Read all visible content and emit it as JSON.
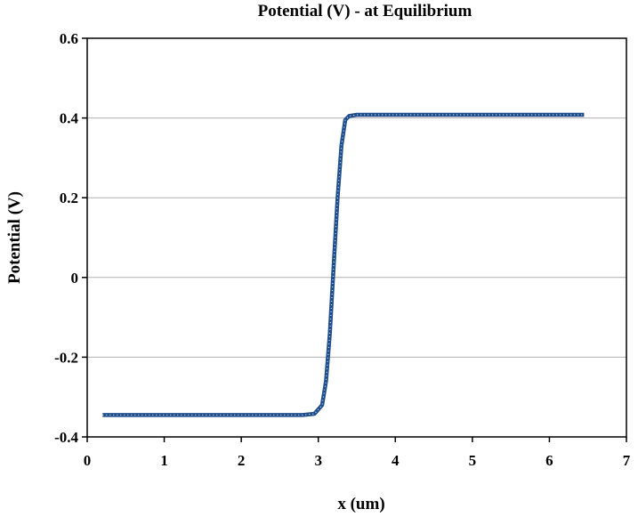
{
  "chart_data": {
    "type": "line",
    "title": "Potential (V) - at Equilibrium",
    "xlabel": "x (um)",
    "ylabel": "Potential (V)",
    "xlim": [
      0,
      7
    ],
    "ylim": [
      -0.4,
      0.6
    ],
    "x_ticks": [
      "0",
      "1",
      "2",
      "3",
      "4",
      "5",
      "6",
      "7"
    ],
    "y_ticks": [
      "0.6",
      "0.4",
      "0.2",
      "0",
      "-0.2",
      "-0.4"
    ],
    "grid": "horizontal",
    "legend": "none",
    "series": [
      {
        "color": "#1f4e8c",
        "x": [
          0.2,
          1.0,
          2.0,
          2.8,
          2.95,
          3.05,
          3.1,
          3.15,
          3.2,
          3.25,
          3.3,
          3.35,
          3.4,
          3.5,
          4.0,
          5.0,
          6.0,
          6.45
        ],
        "y": [
          -0.345,
          -0.345,
          -0.345,
          -0.345,
          -0.342,
          -0.32,
          -0.26,
          -0.14,
          0.03,
          0.2,
          0.33,
          0.395,
          0.405,
          0.408,
          0.408,
          0.408,
          0.408,
          0.408
        ]
      }
    ]
  }
}
